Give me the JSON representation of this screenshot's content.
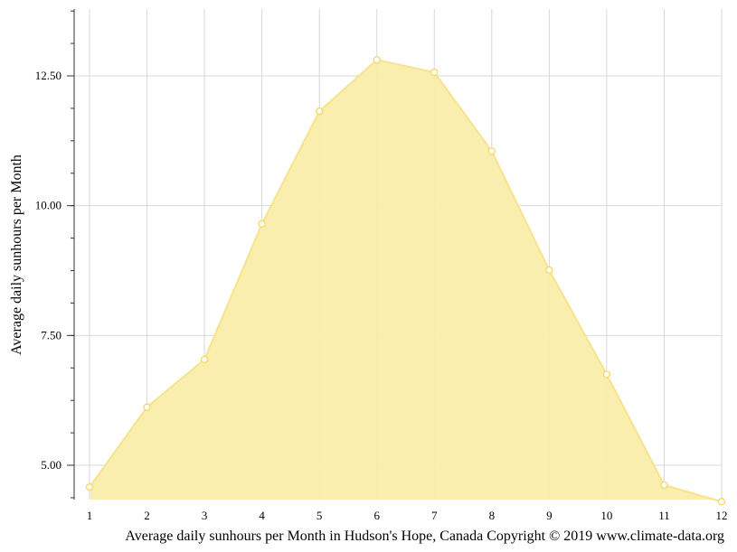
{
  "chart_data": {
    "type": "area",
    "title": "",
    "xlabel": "Average daily sunhours per Month in Hudson's Hope, Canada Copyright © 2019 www.climate-data.org",
    "ylabel": "Average daily sunhours per Month",
    "categories": [
      "1",
      "2",
      "3",
      "4",
      "5",
      "6",
      "7",
      "8",
      "9",
      "10",
      "11",
      "12"
    ],
    "values": [
      4.58,
      6.12,
      7.04,
      9.65,
      11.82,
      12.81,
      12.57,
      11.05,
      8.76,
      6.75,
      4.62,
      4.3
    ],
    "yticks": [
      "5.00",
      "7.50",
      "10.00",
      "12.50"
    ],
    "ylim": [
      4.3,
      13.8
    ],
    "grid": true,
    "legend": "none",
    "colors": {
      "fill": "#f9eda9",
      "line": "#f7e38e",
      "marker_stroke": "#f2d65a",
      "marker_fill": "#ffffff",
      "grid": "#d8d8d8",
      "axis": "#333333"
    }
  }
}
